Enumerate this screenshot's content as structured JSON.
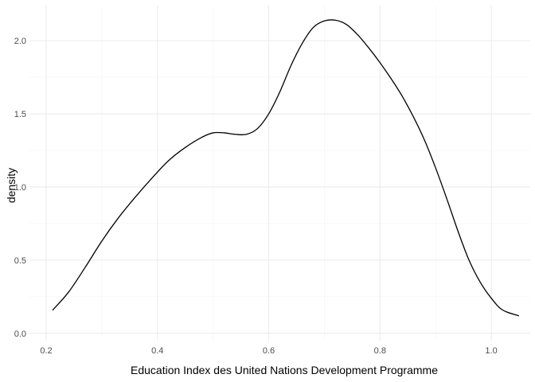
{
  "chart_data": {
    "type": "line",
    "title": "",
    "xlabel": "Education Index des United Nations Development Programme",
    "ylabel": "density",
    "xlim": [
      0.17,
      1.07
    ],
    "ylim": [
      -0.05,
      2.24
    ],
    "x_ticks": [
      {
        "value": 0.2,
        "label": "0.2"
      },
      {
        "value": 0.4,
        "label": "0.4"
      },
      {
        "value": 0.6,
        "label": "0.6"
      },
      {
        "value": 0.8,
        "label": "0.8"
      },
      {
        "value": 1.0,
        "label": "1.0"
      }
    ],
    "x_minor": [
      0.3,
      0.5,
      0.7,
      0.9
    ],
    "y_ticks": [
      {
        "value": 0.0,
        "label": "0.0"
      },
      {
        "value": 0.5,
        "label": "0.5"
      },
      {
        "value": 1.0,
        "label": "1.0"
      },
      {
        "value": 1.5,
        "label": "1.5"
      },
      {
        "value": 2.0,
        "label": "2.0"
      }
    ],
    "y_minor": [
      0.25,
      0.75,
      1.25,
      1.75
    ],
    "grid": true,
    "legend": "none",
    "line_color": "#000000",
    "series": [
      {
        "x": [
          0.212,
          0.24,
          0.27,
          0.3,
          0.33,
          0.36,
          0.39,
          0.42,
          0.45,
          0.48,
          0.5,
          0.52,
          0.54,
          0.56,
          0.58,
          0.6,
          0.62,
          0.64,
          0.66,
          0.68,
          0.7,
          0.72,
          0.74,
          0.76,
          0.78,
          0.8,
          0.82,
          0.84,
          0.86,
          0.88,
          0.9,
          0.92,
          0.94,
          0.96,
          0.98,
          1.0,
          1.02,
          1.049
        ],
        "y": [
          0.16,
          0.28,
          0.45,
          0.63,
          0.79,
          0.93,
          1.06,
          1.18,
          1.27,
          1.34,
          1.37,
          1.37,
          1.36,
          1.36,
          1.4,
          1.5,
          1.65,
          1.83,
          1.98,
          2.09,
          2.135,
          2.14,
          2.11,
          2.04,
          1.95,
          1.85,
          1.74,
          1.62,
          1.48,
          1.32,
          1.13,
          0.92,
          0.7,
          0.5,
          0.35,
          0.24,
          0.16,
          0.12
        ]
      }
    ]
  }
}
